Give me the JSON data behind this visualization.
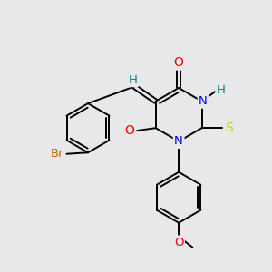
{
  "bg_color": "#e8e8ea",
  "atom_colors": {
    "C": "#000000",
    "H": "#008080",
    "N": "#0000ee",
    "O": "#ee0000",
    "S": "#cccc00",
    "Br": "#cc6600"
  },
  "bond_color": "#000000",
  "bond_width": 1.4
}
